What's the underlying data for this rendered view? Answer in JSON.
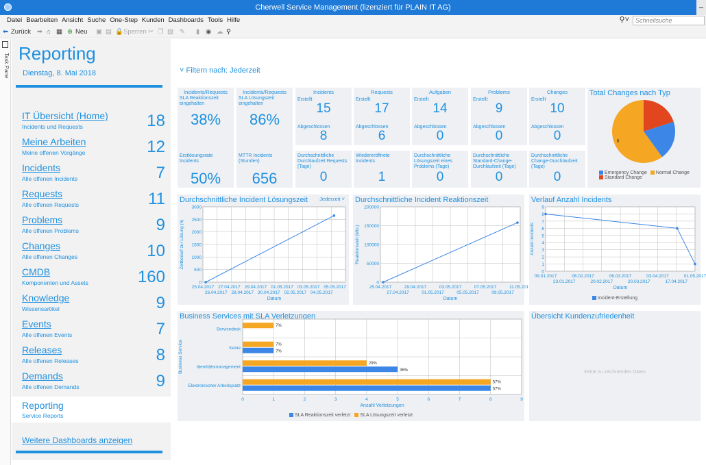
{
  "window": {
    "title": "Cherwell Service Management (lizenziert für PLAIN IT AG)"
  },
  "menu": [
    "Datei",
    "Bearbeiten",
    "Ansicht",
    "Suche",
    "One-Step",
    "Kunden",
    "Dashboards",
    "Tools",
    "Hilfe"
  ],
  "toolbar": {
    "back": "Zurück",
    "new": "Neu",
    "lock": "Sperren"
  },
  "quicksearch": {
    "placeholder": "Schnellsuche"
  },
  "taskpane": {
    "label": "Task Pane"
  },
  "sidebar": {
    "title": "Reporting",
    "date": "Dienstag, 8. Mai 2018",
    "items": [
      {
        "label": "IT Übersicht (Home)",
        "sub": "Incidents und Requests",
        "count": "18"
      },
      {
        "label": "Meine Arbeiten",
        "sub": "Meine offenen Vorgänge",
        "count": "12"
      },
      {
        "label": "Incidents",
        "sub": "Alle offenen Incidents",
        "count": "7"
      },
      {
        "label": "Requests",
        "sub": "Alle offenen Requests",
        "count": "11"
      },
      {
        "label": "Problems",
        "sub": "Alle offenen Problems",
        "count": "9"
      },
      {
        "label": "Changes",
        "sub": "Alle offenen Changes",
        "count": "10"
      },
      {
        "label": "CMDB",
        "sub": "Komponenten und Assets",
        "count": "160"
      },
      {
        "label": "Knowledge",
        "sub": "Wissensartikel",
        "count": "9"
      },
      {
        "label": "Events",
        "sub": "Alle offenen Events",
        "count": "7"
      },
      {
        "label": "Releases",
        "sub": "Alle offenen Releases",
        "count": "8"
      },
      {
        "label": "Demands",
        "sub": "Alle offenen Demands",
        "count": "9"
      },
      {
        "label": "Reporting",
        "sub": "Service Reports",
        "count": ""
      }
    ],
    "more_link": "Weitere Dashboards anzeigen"
  },
  "filter": {
    "label": "Filtern nach: Jederzeit"
  },
  "kpis": {
    "sla_incidents": {
      "head": "Incidents/Requests",
      "sub": "SLA Reaktionszeit eingehalten",
      "value": "38%"
    },
    "sla_requests": {
      "head": "Incidents/Requests",
      "sub": "SLA Lösungszeit eingehalten",
      "value": "86%"
    },
    "incidents": {
      "head": "Incidents",
      "created_label": "Erstellt",
      "created": "15",
      "closed_label": "Abgeschlossen",
      "closed": "8"
    },
    "requests": {
      "head": "Requests",
      "created_label": "Erstellt",
      "created": "17",
      "closed_label": "Abgeschlossen",
      "closed": "6"
    },
    "tasks": {
      "head": "Aufgaben",
      "created_label": "Erstellt",
      "created": "14",
      "closed_label": "Abgeschlossen",
      "closed": "0"
    },
    "problems": {
      "head": "Problems",
      "created_label": "Erstellt",
      "created": "9",
      "closed_label": "Abgeschlossen",
      "closed": "0"
    },
    "changes": {
      "head": "Changes",
      "created_label": "Erstellt",
      "created": "10",
      "closed_label": "Abgeschlossen",
      "closed": "0"
    },
    "first_solve": {
      "sub": "Erstlösungsrate Incidents",
      "value": "50%"
    },
    "mttr": {
      "sub": "MTTR Incidents (Stunden)",
      "value": "656"
    },
    "avg_requests": {
      "sub": "Durchschnittliche Durchlaufzeit Requests (Tage)",
      "value": "0"
    },
    "reopened": {
      "sub": "Wiedereröffnete Incidents",
      "value": "1"
    },
    "avg_problems": {
      "sub": "Durchschnittliche Lösungszeit eines Problems (Tage)",
      "value": "0"
    },
    "avg_std_change": {
      "sub": "Durchschnittliche Standard-Change-Durchlaufzeit (Tage)",
      "value": "0"
    },
    "avg_change": {
      "sub": "Durchschnittliche Change-Durchlaufzeit (Tage)",
      "value": "0"
    }
  },
  "panels": {
    "pie_title": "Total Changes nach Typ",
    "line1_title": "Durchschnittliche Incident Lösungszeit",
    "line1_filter": "Jederzeit",
    "line2_title": "Durchschnittliche Incident Reaktionszeit",
    "line3_title": "Verlauf Anzahl Incidents",
    "bar_title": "Business Services mit SLA Verletzungen",
    "satisfaction_title": "Übersicht Kundenzufriedenheit",
    "satisfaction_empty": "Keine zu zeichnenden Daten"
  },
  "colors": {
    "accent": "#1e90e0",
    "blue": "#3b86e6",
    "orange": "#f5a623",
    "red": "#e2461e",
    "panel": "#eef0f3"
  },
  "chart_data": [
    {
      "type": "pie",
      "title": "Total Changes nach Typ",
      "categories": [
        "Emergency Change",
        "Normal Change",
        "Standard Change"
      ],
      "values": [
        2,
        6,
        2
      ],
      "labels_shown": [
        "",
        "6",
        ""
      ],
      "colors": [
        "#3b86e6",
        "#f5a623",
        "#e2461e"
      ]
    },
    {
      "type": "line",
      "title": "Durchschnittliche Incident Lösungszeit",
      "xlabel": "Datum",
      "ylabel": "Zeitbedarf zur Lösung (h)",
      "x": [
        "25.04.2017",
        "05.05.2017"
      ],
      "y": [
        0,
        2650
      ],
      "ylim": [
        0,
        3000
      ],
      "yticks": [
        0,
        500,
        1000,
        1500,
        2000,
        2500,
        3000
      ],
      "xticks_top": [
        "25.04.2017",
        "27.04.2017",
        "29.04.2017",
        "01.05.2017",
        "03.05.2017",
        "05.05.2017"
      ],
      "xticks_bottom": [
        "26.04.2017",
        "28.04.2017",
        "30.04.2017",
        "02.05.2017",
        "04.05.2017"
      ]
    },
    {
      "type": "line",
      "title": "Durchschnittliche Incident Reaktionszeit",
      "xlabel": "Datum",
      "ylabel": "Reaktionszeit (Min.)",
      "x": [
        "25.04.2017",
        "11.05.2017"
      ],
      "y": [
        0,
        158000
      ],
      "ylim": [
        0,
        200000
      ],
      "yticks": [
        0,
        50000,
        100000,
        150000,
        200000
      ],
      "xticks_top": [
        "25.04.2017",
        "29.04.2017",
        "03.05.2017",
        "07.05.2017",
        "11.05.2017"
      ],
      "xticks_bottom": [
        "27.04.2017",
        "01.05.2017",
        "05.05.2017",
        "09.05.2017"
      ]
    },
    {
      "type": "line",
      "title": "Verlauf Anzahl Incidents",
      "xlabel": "Datum",
      "ylabel": "Anzahl Incidents",
      "series": [
        {
          "name": "Incident-Erstellung",
          "x": [
            "09.01.2017",
            "17.04.2017",
            "01.05.2017"
          ],
          "y": [
            8,
            6,
            1
          ]
        }
      ],
      "ylim": [
        0,
        9
      ],
      "yticks": [
        0,
        1,
        2,
        3,
        4,
        5,
        6,
        7,
        8,
        9
      ],
      "xticks_top": [
        "09.01.2017",
        "06.02.2017",
        "06.03.2017",
        "03.04.2017",
        "01.05.2017"
      ],
      "xticks_bottom": [
        "23.01.2017",
        "20.02.2017",
        "20.03.2017",
        "17.04.2017"
      ]
    },
    {
      "type": "bar",
      "title": "Business Services mit SLA Verletzungen",
      "xlabel": "Anzahl Verletzungen",
      "ylabel": "Business Service",
      "categories": [
        "Servicedesk",
        "Keine",
        "Identitätsmanagement",
        "Elektronischer Arbeitsplatz"
      ],
      "series": [
        {
          "name": "SLA Reaktionszeit verletzt",
          "values": [
            0,
            1,
            5,
            8
          ],
          "labels": [
            "",
            "7%",
            "36%",
            "57%"
          ]
        },
        {
          "name": "SLA Lösungszeit verletzt",
          "values": [
            1,
            1,
            4,
            8
          ],
          "labels": [
            "7%",
            "7%",
            "29%",
            "57%"
          ]
        }
      ],
      "xlim": [
        0,
        9
      ],
      "xticks": [
        0,
        1,
        2,
        3,
        4,
        5,
        6,
        7,
        8,
        9
      ]
    }
  ]
}
